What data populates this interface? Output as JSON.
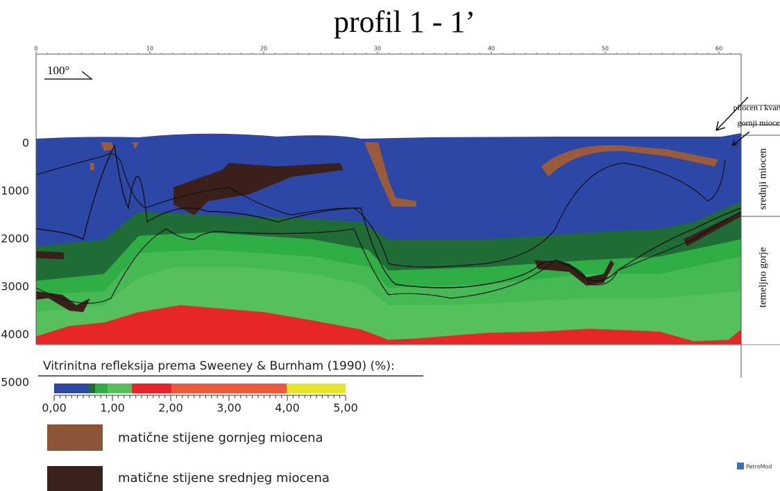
{
  "header": {
    "title": "profil 1 - 1’"
  },
  "section": {
    "distance_ticks": [
      "0",
      "10",
      "20",
      "30",
      "40",
      "50",
      "60"
    ],
    "depth_ticks": [
      "0",
      "1000",
      "2000",
      "3000",
      "4000",
      "5000"
    ],
    "orientation": "100°",
    "units": [
      "pliocen i kvartar",
      "gornji miocen",
      "srednji miocen",
      "temeljno gorje"
    ]
  },
  "colorbar": {
    "title": "Vitrinitna refleksija prema Sweeney & Burnham (1990) (%):",
    "ticks": [
      "0,00",
      "1,00",
      "2,00",
      "3,00",
      "4,00",
      "5,00"
    ]
  },
  "legend": [
    {
      "label": "matične stijene gornjeg miocena"
    },
    {
      "label": "matične stijene srednjeg miocena"
    }
  ],
  "logo": "PetroMod"
}
